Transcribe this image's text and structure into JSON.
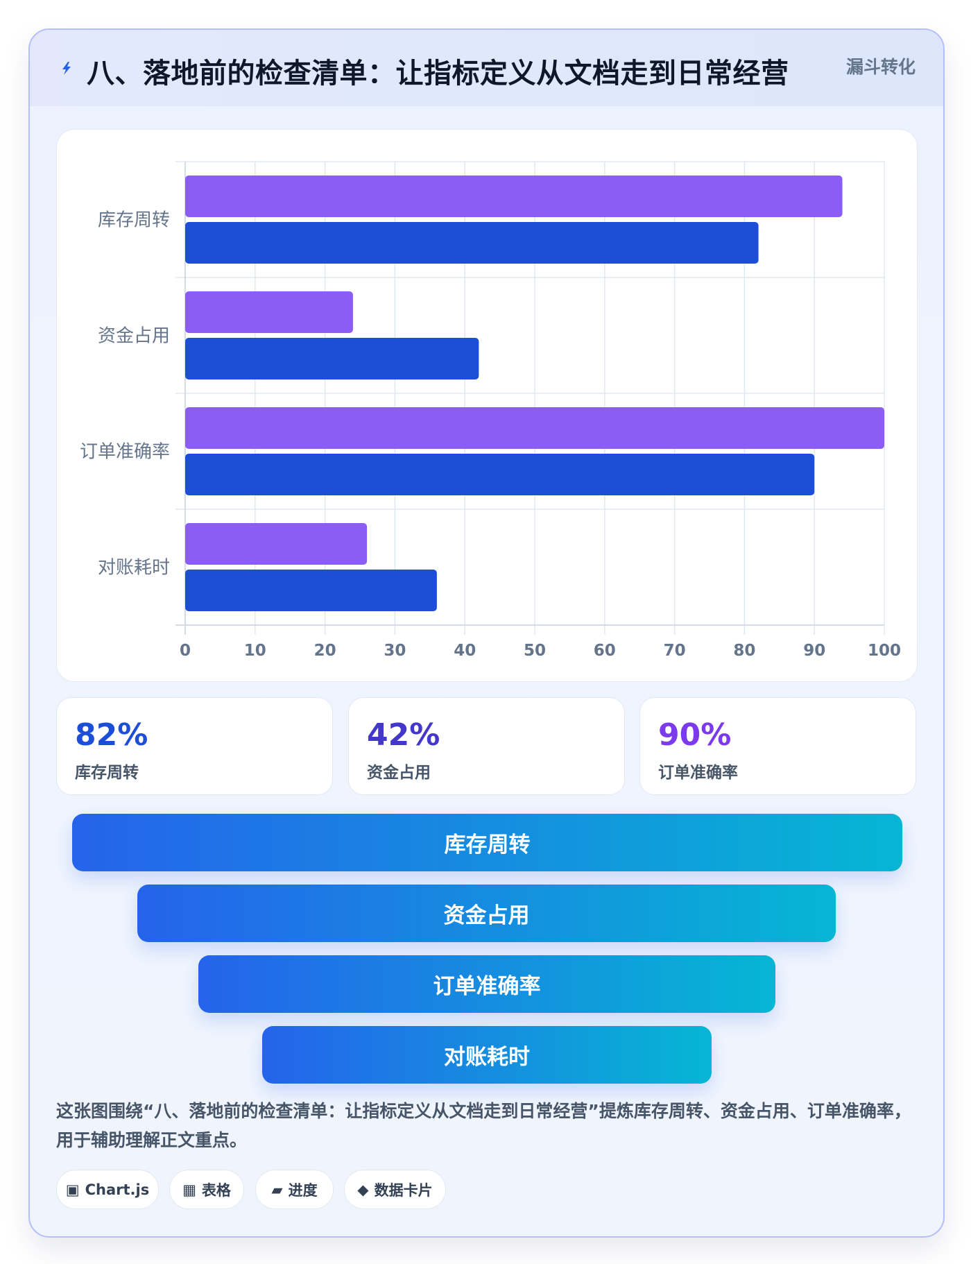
{
  "header": {
    "title": "八、落地前的检查清单：让指标定义从文档走到日常经营",
    "tag": "漏斗转化",
    "icon": "lightning-icon"
  },
  "chart_data": {
    "type": "bar",
    "orientation": "horizontal",
    "categories": [
      "库存周转",
      "资金占用",
      "订单准确率",
      "对账耗时"
    ],
    "series": [
      {
        "values": [
          94,
          24,
          100,
          26
        ],
        "color": "#8b5cf6"
      },
      {
        "values": [
          82,
          42,
          90,
          36
        ],
        "color": "#1d4ed8"
      }
    ],
    "xlim": [
      0,
      100
    ],
    "xticks": [
      "0",
      "10",
      "20",
      "30",
      "40",
      "50",
      "60",
      "70",
      "80",
      "90",
      "100"
    ],
    "grid": true,
    "legend": "none"
  },
  "stats": [
    {
      "value": "82%",
      "label": "库存周转",
      "color": "#1d4ed8"
    },
    {
      "value": "42%",
      "label": "资金占用",
      "color": "#4338ca"
    },
    {
      "value": "90%",
      "label": "订单准确率",
      "color": "#7c3aed"
    }
  ],
  "funnel": [
    "库存周转",
    "资金占用",
    "订单准确率",
    "对账耗时"
  ],
  "description": "这张图围绕“八、落地前的检查清单：让指标定义从文档走到日常经营”提炼库存周转、资金占用、订单准确率，用于辅助理解正文重点。",
  "chips": [
    {
      "icon": "▣",
      "icon_name": "chart-icon",
      "label": "Chart.js"
    },
    {
      "icon": "▦",
      "icon_name": "table-icon",
      "label": "表格"
    },
    {
      "icon": "▰",
      "icon_name": "progress-icon",
      "label": "进度"
    },
    {
      "icon": "◆",
      "icon_name": "card-icon",
      "label": "数据卡片"
    }
  ]
}
